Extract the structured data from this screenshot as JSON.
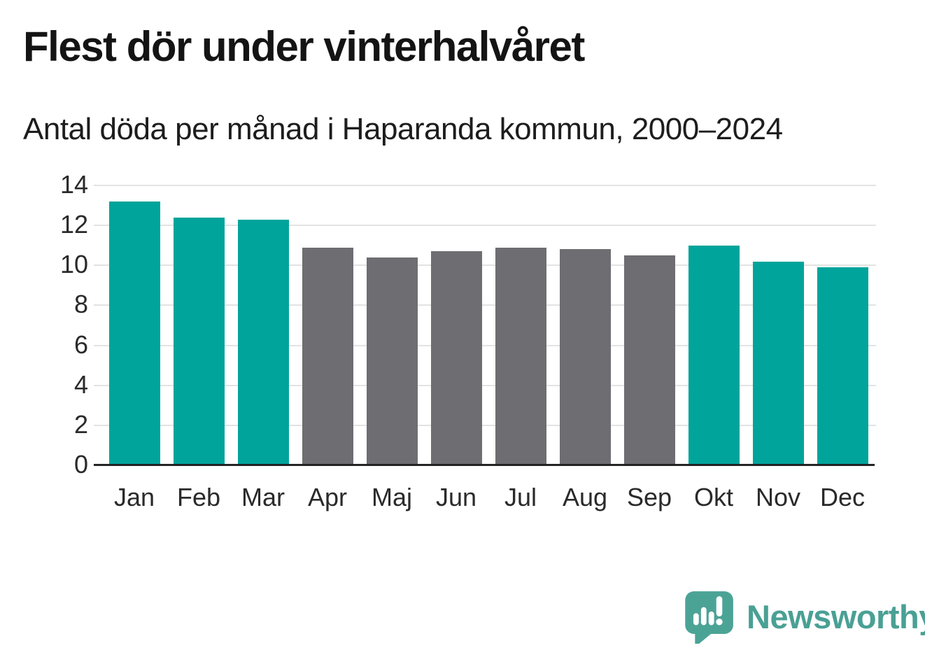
{
  "header": {
    "title": "Flest dör under vinterhalvåret",
    "subtitle": "Antal döda per månad i Haparanda kommun, 2000–2024"
  },
  "chart_data": {
    "type": "bar",
    "title": "Flest dör under vinterhalvåret",
    "subtitle": "Antal döda per månad i Haparanda kommun, 2000–2024",
    "categories": [
      "Jan",
      "Feb",
      "Mar",
      "Apr",
      "Maj",
      "Jun",
      "Jul",
      "Aug",
      "Sep",
      "Okt",
      "Nov",
      "Dec"
    ],
    "values": [
      13.2,
      12.4,
      12.3,
      10.9,
      10.4,
      10.7,
      10.9,
      10.8,
      10.5,
      11.0,
      10.2,
      9.9
    ],
    "bar_groups": [
      "winter",
      "winter",
      "winter",
      "summer",
      "summer",
      "summer",
      "summer",
      "summer",
      "summer",
      "winter",
      "winter",
      "winter"
    ],
    "palette": {
      "winter": "#00a49b",
      "summer": "#6e6d72"
    },
    "xlabel": "",
    "ylabel": "",
    "ylim": [
      0,
      14
    ],
    "yticks": [
      0,
      2,
      4,
      6,
      8,
      10,
      12,
      14
    ],
    "grid": "horizontal-only",
    "legend": "none"
  },
  "branding": {
    "logo_text": "Newsworthy",
    "logo_icon": "newsworthy-speech-bubble-bar-chart-icon",
    "logo_text_color": "#4aa094",
    "logo_mark_color": "#4ba396"
  },
  "colors": {
    "background": "#ffffff",
    "title_text": "#141414",
    "subtitle_text": "#1d1d1d",
    "axis_text": "#2a2a2a",
    "gridline": "#e3e3e3",
    "axis_line": "#242424",
    "bar_winter": "#00a49b",
    "bar_summer": "#6e6d72"
  }
}
